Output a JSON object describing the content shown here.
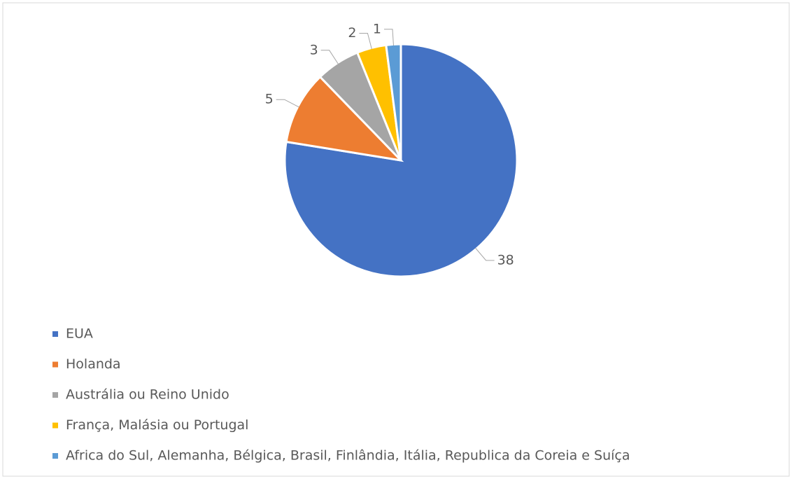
{
  "chart_data": {
    "type": "pie",
    "categories": [
      "EUA",
      "Holanda",
      "Austrália ou Reino Unido",
      "França, Malásia ou Portugal",
      "Africa do Sul, Alemanha, Bélgica, Brasil, Finlândia, Itália, Republica da Coreia e Suíça"
    ],
    "values": [
      38,
      5,
      3,
      2,
      1
    ],
    "colors": [
      "#4472c4",
      "#ed7d31",
      "#a5a5a5",
      "#ffc000",
      "#5b9bd5"
    ],
    "legend": "bottom-left"
  }
}
